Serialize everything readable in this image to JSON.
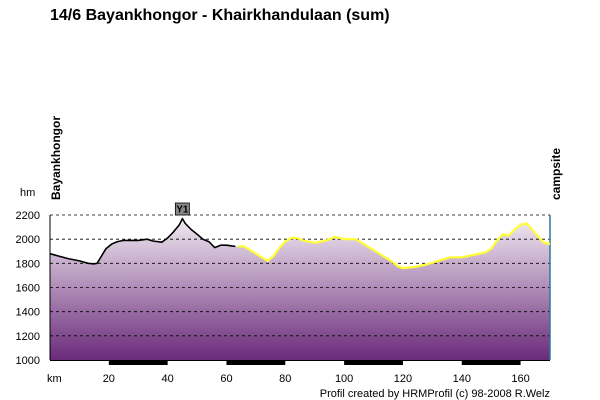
{
  "chart_data": {
    "type": "area",
    "title": "14/6 Bayankhongor - Khairkhandulaan (sum)",
    "xlabel": "km",
    "ylabel": "hm",
    "xlim": [
      0,
      170
    ],
    "ylim": [
      1000,
      2200
    ],
    "x_ticks": [
      20,
      40,
      60,
      80,
      100,
      120,
      140,
      160
    ],
    "y_ticks": [
      1000,
      1200,
      1400,
      1600,
      1800,
      2000,
      2200
    ],
    "grid": "horizontal dashed",
    "fill_gradient": [
      "#f1eaf2",
      "#6a2a7a"
    ],
    "start_label": "Bayankhongor",
    "end_label": "campsite",
    "credit": "Profil created by HRMProfil (c) 98-2008 R.Welz",
    "series": [
      {
        "style": "ridden",
        "color": "#000000",
        "x": [
          0,
          3,
          6,
          10,
          13,
          15,
          16,
          17,
          18,
          19,
          21,
          22,
          23,
          25,
          27,
          30,
          33,
          35,
          38,
          40,
          42,
          44,
          45,
          46,
          48,
          50,
          52,
          54,
          56,
          58,
          60,
          63
        ],
        "y": [
          1880,
          1860,
          1840,
          1820,
          1800,
          1795,
          1800,
          1840,
          1880,
          1920,
          1960,
          1970,
          1980,
          1990,
          1990,
          1990,
          2000,
          1985,
          1975,
          2010,
          2060,
          2120,
          2170,
          2130,
          2080,
          2040,
          2000,
          1980,
          1930,
          1950,
          1950,
          1940
        ]
      },
      {
        "style": "planned",
        "color": "#ffff33",
        "x": [
          64,
          66,
          70,
          72,
          74,
          76,
          78,
          80,
          82,
          84,
          86,
          90,
          94,
          97,
          100,
          104,
          108,
          112,
          116,
          118,
          120,
          124,
          128,
          132,
          136,
          140,
          144,
          148,
          150,
          152,
          154,
          156,
          158,
          160,
          162,
          164,
          166,
          168,
          170
        ],
        "y": [
          1940,
          1940,
          1880,
          1850,
          1820,
          1860,
          1930,
          1980,
          2010,
          2010,
          1990,
          1970,
          1990,
          2020,
          2000,
          2000,
          1940,
          1880,
          1820,
          1780,
          1760,
          1770,
          1790,
          1820,
          1850,
          1850,
          1870,
          1890,
          1920,
          1990,
          2040,
          2030,
          2080,
          2120,
          2130,
          2080,
          2020,
          1970,
          1960
        ]
      }
    ],
    "annotations": [
      {
        "type": "pass-marker",
        "x": 45,
        "text": "Y1"
      }
    ]
  }
}
